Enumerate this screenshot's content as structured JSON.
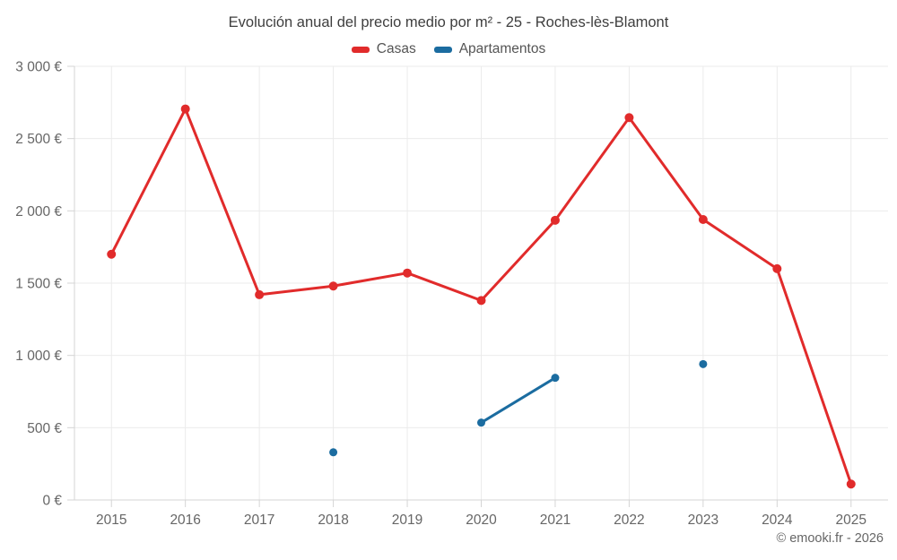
{
  "footer": "© emooki.fr - 2026",
  "chart_data": {
    "type": "line",
    "title": "Evolución anual del precio medio por m² - 25 - Roches-lès-Blamont",
    "categories": [
      "2015",
      "2016",
      "2017",
      "2018",
      "2019",
      "2020",
      "2021",
      "2022",
      "2023",
      "2024",
      "2025"
    ],
    "series": [
      {
        "name": "Casas",
        "color": "#e12b2b",
        "marker_radius": 5,
        "values": [
          1700,
          2705,
          1420,
          1480,
          1570,
          1380,
          1935,
          2645,
          1940,
          1600,
          110
        ]
      },
      {
        "name": "Apartamentos",
        "color": "#1b6ca0",
        "marker_radius": 4.5,
        "values": [
          null,
          null,
          null,
          330,
          null,
          535,
          845,
          null,
          940,
          null,
          null
        ]
      }
    ],
    "xlabel": "",
    "ylabel": "",
    "ylim": [
      0,
      3000
    ],
    "yticks": [
      {
        "value": 0,
        "label": "0 €"
      },
      {
        "value": 500,
        "label": "500 €"
      },
      {
        "value": 1000,
        "label": "1 000 €"
      },
      {
        "value": 1500,
        "label": "1 500 €"
      },
      {
        "value": 2000,
        "label": "2 000 €"
      },
      {
        "value": 2500,
        "label": "2 500 €"
      },
      {
        "value": 3000,
        "label": "3 000 €"
      }
    ],
    "grid": true,
    "legend_position": "top"
  }
}
